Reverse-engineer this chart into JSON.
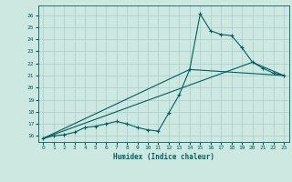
{
  "title": "",
  "xlabel": "Humidex (Indice chaleur)",
  "bg_color": "#cce8e0",
  "grid_color": "#aacccc",
  "line_color": "#006060",
  "xlim": [
    -0.5,
    23.5
  ],
  "ylim": [
    15.5,
    26.8
  ],
  "xticks": [
    0,
    1,
    2,
    3,
    4,
    5,
    6,
    7,
    8,
    9,
    10,
    11,
    12,
    13,
    14,
    15,
    16,
    17,
    18,
    19,
    20,
    21,
    22,
    23
  ],
  "yticks": [
    16,
    17,
    18,
    19,
    20,
    21,
    22,
    23,
    24,
    25,
    26
  ],
  "line1_x": [
    0,
    1,
    2,
    3,
    4,
    5,
    6,
    7,
    8,
    9,
    10,
    11,
    12,
    13,
    14,
    15,
    16,
    17,
    18,
    19,
    20,
    21,
    22,
    23
  ],
  "line1_y": [
    15.8,
    16.0,
    16.1,
    16.3,
    16.7,
    16.8,
    17.0,
    17.2,
    17.0,
    16.7,
    16.5,
    16.4,
    17.9,
    19.4,
    21.5,
    26.1,
    24.7,
    24.4,
    24.3,
    23.3,
    22.1,
    21.6,
    21.2,
    21.0
  ],
  "line2_x": [
    0,
    14,
    23
  ],
  "line2_y": [
    15.8,
    21.5,
    21.0
  ],
  "line3_x": [
    0,
    20,
    23
  ],
  "line3_y": [
    15.8,
    22.1,
    21.0
  ]
}
